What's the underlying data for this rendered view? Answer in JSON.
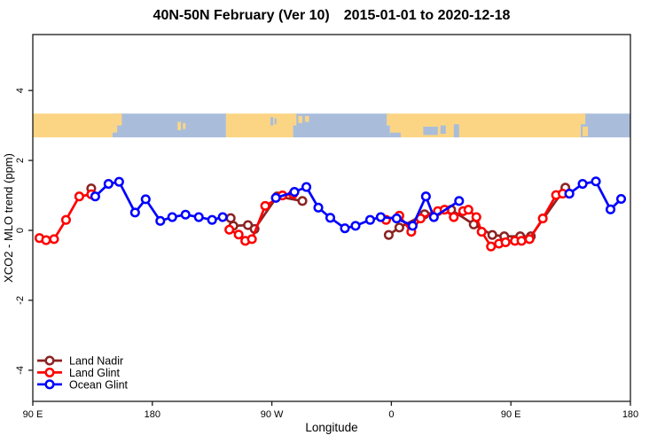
{
  "title": {
    "region_period": "40N-50N February (Ver 10)",
    "date_range": "2015-01-01 to 2020-12-18"
  },
  "legend": {
    "entries": [
      {
        "label": "Land Nadir",
        "color": "#8B2323"
      },
      {
        "label": "Land Glint",
        "color": "#FF0000"
      },
      {
        "label": "Ocean Glint",
        "color": "#0000FF"
      }
    ]
  },
  "colors": {
    "background": "#FFFFFF",
    "axis": "#1a1a1a",
    "text": "#000000",
    "band_land": "#FBD584",
    "band_ocean": "#A9BDDB"
  },
  "chart_data": {
    "type": "line",
    "title": "40N-50N February (Ver 10)  2015-01-01 to 2020-12-18",
    "xlabel": "Longitude",
    "ylabel": "XCO2 - MLO trend (ppm)",
    "x_axis": {
      "min": 90,
      "max": 540,
      "tick_values": [
        90,
        180,
        270,
        360,
        450,
        540
      ],
      "tick_labels": [
        "90 E",
        "180",
        "90 W",
        "0",
        "90 E",
        "180"
      ],
      "note": "longitude wraps eastward: 90E to 180, 90W, 0, 90E, 180"
    },
    "y_axis": {
      "min": -4.89,
      "max": 5.6,
      "tick_values": [
        4,
        2,
        0,
        -2,
        -4
      ],
      "tick_labels": [
        "4",
        "2",
        "0",
        "-2",
        "-4"
      ]
    },
    "grid": false,
    "legend_position": "bottom-left",
    "marker": "open-circle",
    "series": [
      {
        "name": "Land Nadir",
        "color": "#8B2323",
        "segments": [
          [
            [
              134,
              1.2
            ]
          ],
          [
            [
              239,
              0.35
            ],
            [
              241,
              0.13
            ],
            [
              252,
              0.15
            ],
            [
              257,
              0.04
            ],
            [
              274,
              0.97
            ],
            [
              293,
              0.84
            ]
          ],
          [
            [
              358,
              -0.13
            ],
            [
              366,
              0.08
            ],
            [
              385,
              0.46
            ],
            [
              405,
              0.59
            ],
            [
              422,
              0.17
            ],
            [
              436,
              -0.13
            ],
            [
              445,
              -0.17
            ],
            [
              457,
              -0.17
            ],
            [
              465,
              -0.17
            ],
            [
              491,
              1.22
            ]
          ]
        ]
      },
      {
        "name": "Land Glint",
        "color": "#FF0000",
        "segments": [
          [
            [
              95,
              -0.22
            ],
            [
              100,
              -0.28
            ],
            [
              106,
              -0.25
            ],
            [
              115,
              0.3
            ],
            [
              125,
              0.97
            ],
            [
              134,
              1.03
            ]
          ],
          [
            [
              238,
              0.02
            ],
            [
              245,
              -0.12
            ],
            [
              250,
              -0.3
            ],
            [
              255,
              -0.25
            ],
            [
              265,
              0.7
            ],
            [
              278,
              1.0
            ],
            [
              286,
              1.04
            ]
          ],
          [
            [
              356,
              0.3
            ],
            [
              366,
              0.42
            ],
            [
              375,
              -0.04
            ],
            [
              382,
              0.34
            ],
            [
              395,
              0.55
            ],
            [
              400,
              0.59
            ],
            [
              407,
              0.38
            ],
            [
              414,
              0.55
            ],
            [
              418,
              0.59
            ],
            [
              424,
              0.38
            ],
            [
              428,
              -0.04
            ],
            [
              435,
              -0.46
            ],
            [
              441,
              -0.38
            ],
            [
              446,
              -0.34
            ],
            [
              453,
              -0.3
            ],
            [
              458,
              -0.3
            ],
            [
              464,
              -0.25
            ],
            [
              474,
              0.34
            ],
            [
              484,
              1.01
            ],
            [
              489,
              1.05
            ],
            [
              494,
              1.05
            ]
          ]
        ]
      },
      {
        "name": "Ocean Glint",
        "color": "#0000FF",
        "segments": [
          [
            [
              137,
              0.97
            ],
            [
              147,
              1.33
            ],
            [
              155,
              1.39
            ],
            [
              167,
              0.51
            ],
            [
              175,
              0.89
            ],
            [
              186,
              0.27
            ],
            [
              195,
              0.38
            ],
            [
              205,
              0.45
            ],
            [
              215,
              0.38
            ],
            [
              225,
              0.3
            ],
            [
              233,
              0.38
            ]
          ],
          [
            [
              273,
              0.93
            ],
            [
              287,
              1.1
            ],
            [
              296,
              1.24
            ],
            [
              305,
              0.65
            ],
            [
              314,
              0.36
            ],
            [
              325,
              0.06
            ],
            [
              333,
              0.13
            ],
            [
              344,
              0.3
            ],
            [
              352,
              0.38
            ],
            [
              364,
              0.34
            ],
            [
              376,
              0.13
            ],
            [
              386,
              0.97
            ],
            [
              392,
              0.38
            ],
            [
              411,
              0.84
            ]
          ],
          [
            [
              494,
              1.05
            ],
            [
              504,
              1.33
            ],
            [
              514,
              1.4
            ],
            [
              525,
              0.6
            ],
            [
              533,
              0.9
            ]
          ]
        ]
      }
    ],
    "map_band": {
      "y_range_ppm": [
        2.66,
        3.34
      ],
      "land_color": "#FBD584",
      "ocean_color": "#A9BDDB",
      "segments": [
        {
          "from": 90,
          "to": 150,
          "surface": "land"
        },
        {
          "from": 150,
          "to": 235.5,
          "surface": "ocean"
        },
        {
          "from": 235.5,
          "to": 286,
          "surface": "land"
        },
        {
          "from": 286,
          "to": 359,
          "surface": "ocean"
        },
        {
          "from": 359,
          "to": 502.6,
          "surface": "land"
        },
        {
          "from": 502.6,
          "to": 540,
          "surface": "ocean"
        }
      ],
      "details": [
        {
          "from": 150,
          "to": 157,
          "top": 0.0,
          "bottom": 0.5,
          "surface": "land"
        },
        {
          "from": 150,
          "to": 153.5,
          "top": 0.5,
          "bottom": 0.8,
          "surface": "land"
        },
        {
          "from": 199,
          "to": 201.5,
          "top": 0.35,
          "bottom": 0.7,
          "surface": "land"
        },
        {
          "from": 203,
          "to": 205,
          "top": 0.4,
          "bottom": 0.65,
          "surface": "land"
        },
        {
          "from": 269,
          "to": 271,
          "top": 0.15,
          "bottom": 0.5,
          "surface": "ocean"
        },
        {
          "from": 272,
          "to": 273.5,
          "top": 0.2,
          "bottom": 0.45,
          "surface": "ocean"
        },
        {
          "from": 286,
          "to": 288.5,
          "top": 0.0,
          "bottom": 0.5,
          "surface": "land"
        },
        {
          "from": 290,
          "to": 293,
          "top": 0.1,
          "bottom": 0.4,
          "surface": "land"
        },
        {
          "from": 295,
          "to": 298,
          "top": 0.1,
          "bottom": 0.35,
          "surface": "land"
        },
        {
          "from": 356.5,
          "to": 359,
          "top": 0.0,
          "bottom": 0.5,
          "surface": "land"
        },
        {
          "from": 359,
          "to": 367,
          "top": 0.8,
          "bottom": 1.0,
          "surface": "ocean"
        },
        {
          "from": 384,
          "to": 395,
          "top": 0.55,
          "bottom": 0.9,
          "surface": "ocean"
        },
        {
          "from": 397,
          "to": 401,
          "top": 0.5,
          "bottom": 0.85,
          "surface": "ocean"
        },
        {
          "from": 407,
          "to": 411,
          "top": 0.45,
          "bottom": 1.0,
          "surface": "ocean"
        },
        {
          "from": 502.6,
          "to": 506,
          "top": 0.0,
          "bottom": 0.45,
          "surface": "land"
        },
        {
          "from": 504,
          "to": 508,
          "top": 0.55,
          "bottom": 0.95,
          "surface": "land"
        }
      ]
    }
  }
}
